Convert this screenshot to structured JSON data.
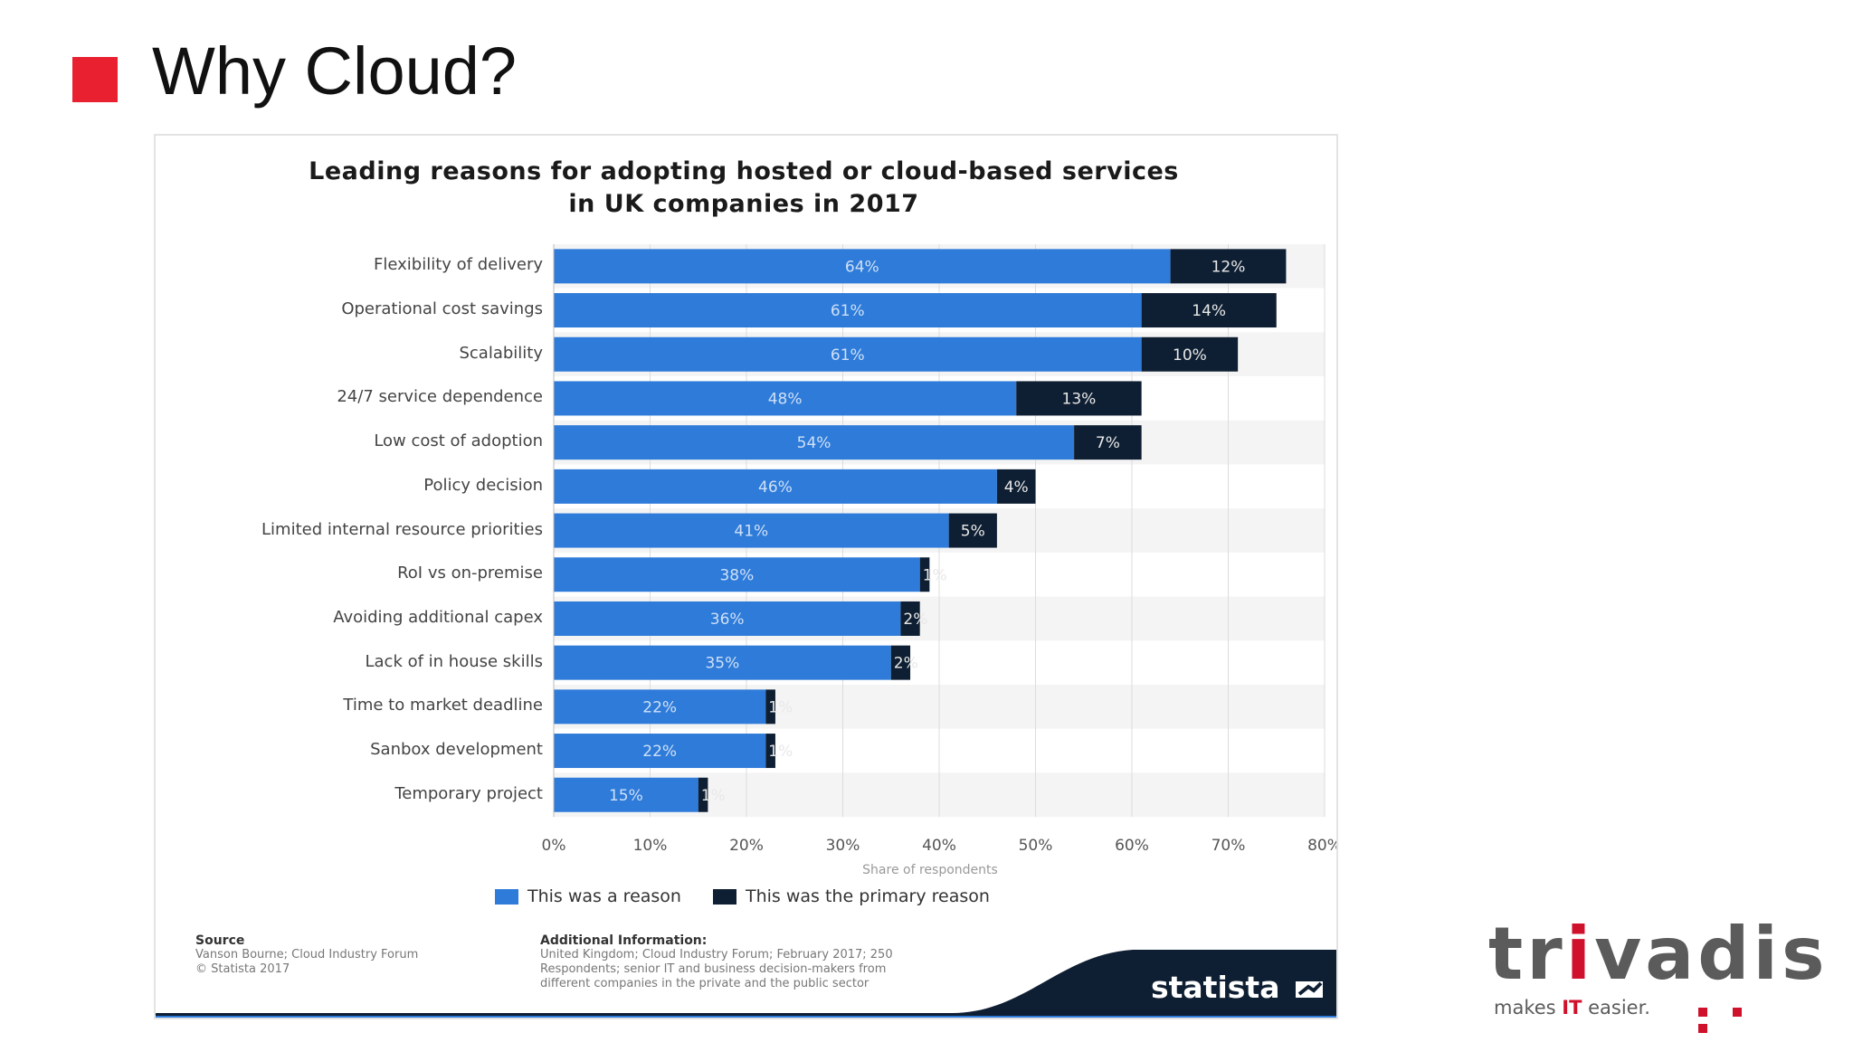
{
  "slide": {
    "title": "Why Cloud?",
    "bullet_color": "#e8202f"
  },
  "brand": {
    "name_part1": "tr",
    "name_accent": "i",
    "name_part2": "vadis",
    "tagline_before": "makes ",
    "tagline_accent": "IT",
    "tagline_after": " easier."
  },
  "chart_data": {
    "type": "bar",
    "orientation": "horizontal",
    "stacked": true,
    "title": "Leading reasons for adopting hosted or cloud-based services in UK companies in 2017",
    "xlabel": "Share of respondents",
    "xlim": [
      0,
      80
    ],
    "xticks": [
      "0%",
      "10%",
      "20%",
      "30%",
      "40%",
      "50%",
      "60%",
      "70%",
      "80%"
    ],
    "grid": true,
    "legend_position": "bottom",
    "categories": [
      "Flexibility of delivery",
      "Operational cost savings",
      "Scalability",
      "24/7 service dependence",
      "Low cost of adoption",
      "Policy decision",
      "Limited internal resource priorities",
      "RoI vs on-premise",
      "Avoiding additional capex",
      "Lack of in house skills",
      "Time to market deadline",
      "Sanbox development",
      "Temporary project"
    ],
    "series": [
      {
        "name": "This was a reason",
        "color": "#2e7bd9",
        "values": [
          64,
          61,
          61,
          48,
          54,
          46,
          41,
          38,
          36,
          35,
          22,
          22,
          15
        ],
        "labels": [
          "64%",
          "61%",
          "61%",
          "48%",
          "54%",
          "46%",
          "41%",
          "38%",
          "36%",
          "35%",
          "22%",
          "22%",
          "15%"
        ]
      },
      {
        "name": "This was the primary reason",
        "color": "#0f1f33",
        "values": [
          12,
          14,
          10,
          13,
          7,
          4,
          5,
          1,
          2,
          2,
          1,
          1,
          1
        ],
        "labels": [
          "12%",
          "14%",
          "10%",
          "13%",
          "7%",
          "4%",
          "5%",
          "1%",
          "2%",
          "2%",
          "1%",
          "1%",
          "1%"
        ]
      }
    ]
  },
  "footer": {
    "source_head": "Source",
    "source_lines": [
      "Vanson Bourne; Cloud Industry Forum",
      "© Statista 2017"
    ],
    "addinfo_head": "Additional Information:",
    "addinfo_lines": [
      "United Kingdom; Cloud Industry Forum; February 2017; 250",
      "Respondents; senior IT and business decision-makers from",
      "different companies in the private and the public sector"
    ],
    "statista_logo": "statista"
  }
}
